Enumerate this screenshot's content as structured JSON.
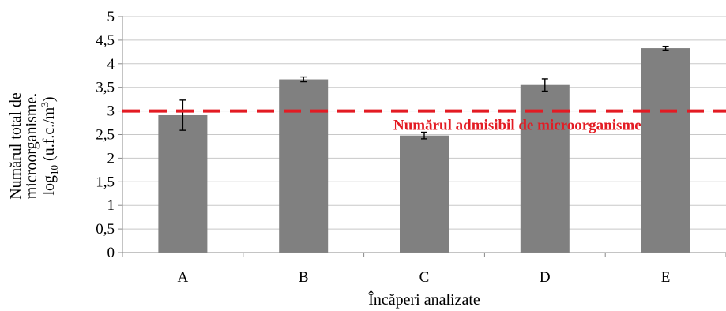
{
  "chart_data": {
    "type": "bar",
    "categories": [
      "A",
      "B",
      "C",
      "D",
      "E"
    ],
    "values": [
      2.91,
      3.67,
      2.48,
      3.55,
      4.33
    ],
    "error": [
      0.32,
      0.05,
      0.07,
      0.13,
      0.04
    ],
    "xlabel": "Încăperi analizate",
    "ylabel_lines": [
      "Numărul total de",
      "microorganisme.",
      "log",
      "10",
      " (u.f.c./m",
      "3",
      ")"
    ],
    "ylim": [
      0,
      5
    ],
    "yticks": [
      "0",
      "0,5",
      "1",
      "1,5",
      "2",
      "2,5",
      "3",
      "3,5",
      "4",
      "4,5",
      "5"
    ],
    "grid": true,
    "reference_line": {
      "value": 3,
      "label": "Numărul admisibil de microorganisme",
      "color": "#e31b23"
    },
    "bar_color": "#808080",
    "gridline_color": "#c8c8c8"
  }
}
